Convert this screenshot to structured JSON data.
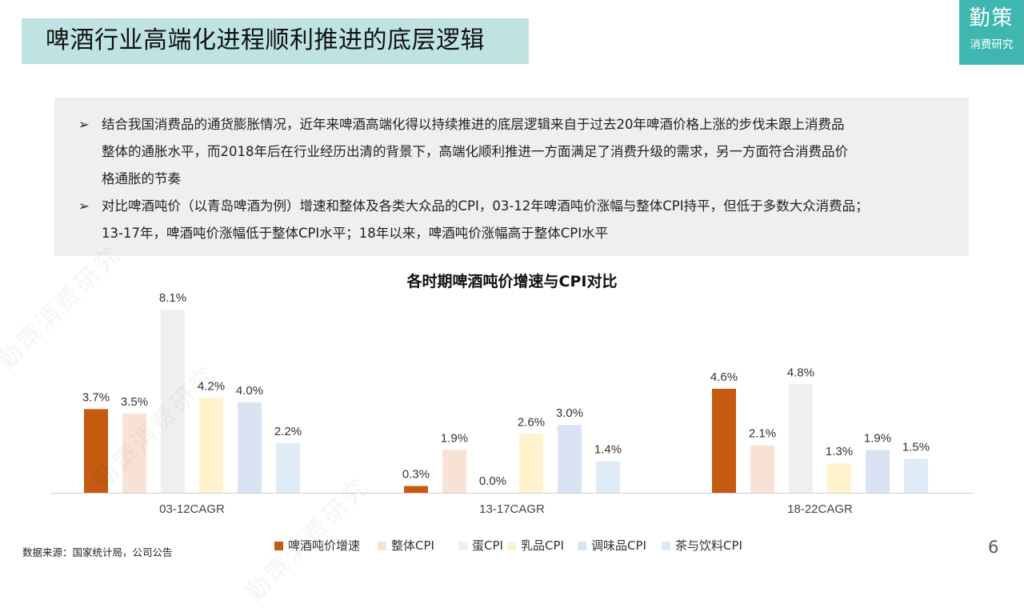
{
  "header": {
    "title": "啤酒行业高端化进程顺利推进的底层逻辑",
    "logo_main": "勤策",
    "logo_sub": "消费研究"
  },
  "summary": {
    "bullets": [
      {
        "marker": "➢",
        "lines": [
          "结合我国消费品的通货膨胀情况，近年来啤酒高端化得以持续推进的底层逻辑来自于过去20年啤酒价格上涨的步伐未跟上消费品",
          "整体的通胀水平，而2018年后在行业经历出清的背景下，高端化顺利推进一方面满足了消费升级的需求，另一方面符合消费品价",
          "格通胀的节奏"
        ]
      },
      {
        "marker": "➢",
        "lines": [
          "对比啤酒吨价（以青岛啤酒为例）增速和整体及各类大众品的CPI，03-12年啤酒吨价涨幅与整体CPI持平，但低于多数大众消费品；",
          "13-17年，啤酒吨价涨幅低于整体CPI水平；18年以来，啤酒吨价涨幅高于整体CPI水平"
        ]
      }
    ]
  },
  "chart_data": {
    "type": "bar",
    "title": "各时期啤酒吨价增速与CPI对比",
    "categories": [
      "03-12CAGR",
      "13-17CAGR",
      "18-22CAGR"
    ],
    "value_format": "percent_1dp",
    "ylim": [
      0,
      8.5
    ],
    "grid": false,
    "legend_position": "bottom",
    "series": [
      {
        "name": "啤酒吨价增速",
        "color": "#c55a11",
        "values": [
          3.7,
          0.3,
          4.6
        ]
      },
      {
        "name": "整体CPI",
        "color": "#f8e2d6",
        "values": [
          3.5,
          1.9,
          2.1
        ]
      },
      {
        "name": "蛋CPI",
        "color": "#efefef",
        "values": [
          8.1,
          0.0,
          4.8
        ]
      },
      {
        "name": "乳品CPI",
        "color": "#fff2cc",
        "values": [
          4.2,
          2.6,
          1.3
        ]
      },
      {
        "name": "调味品CPI",
        "color": "#dae3f3",
        "values": [
          4.0,
          3.0,
          1.9
        ]
      },
      {
        "name": "茶与饮料CPI",
        "color": "#deebf7",
        "values": [
          2.2,
          1.4,
          1.5
        ]
      }
    ]
  },
  "footer": {
    "source": "数据来源：国家统计局，公司公告",
    "page_number": "6"
  },
  "watermark_text": "勤策消费研究"
}
